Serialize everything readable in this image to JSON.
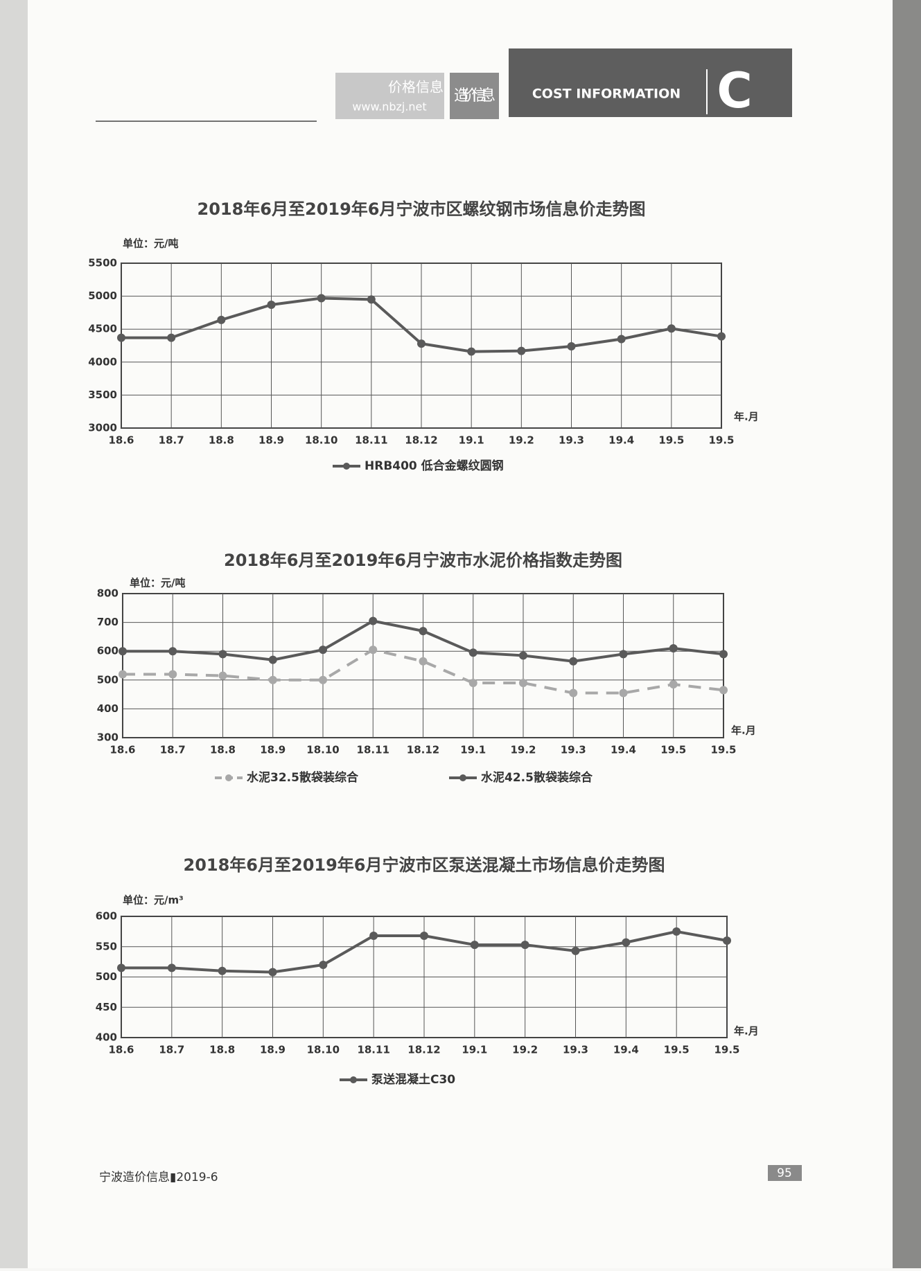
{
  "header": {
    "site_name": "价格信息",
    "site_url": "www.nbzj.net",
    "badge": "造价信息",
    "section": "COST INFORMATION",
    "letter": "C"
  },
  "footer": {
    "publication": "宁波造价信息▮2019-6",
    "page_number": "95"
  },
  "chart_data": [
    {
      "type": "line",
      "title": "2018年6月至2019年6月宁波市区螺纹钢市场信息价走势图",
      "unit_label": "单位：元/吨",
      "x_label": "年.月",
      "categories": [
        "18.6",
        "18.7",
        "18.8",
        "18.9",
        "18.10",
        "18.11",
        "18.12",
        "19.1",
        "19.2",
        "19.3",
        "19.4",
        "19.5",
        "19.5"
      ],
      "series": [
        {
          "name": "HRB400 低合金螺纹圆钢",
          "color": "#5a5a5a",
          "style": "solid",
          "values": [
            4370,
            4370,
            4640,
            4870,
            4970,
            4950,
            4280,
            4160,
            4170,
            4240,
            4350,
            4510,
            4390
          ]
        }
      ],
      "ylim": [
        3000,
        5500
      ],
      "yticks": [
        3000,
        3500,
        4000,
        4500,
        5000,
        5500
      ],
      "grid": true
    },
    {
      "type": "line",
      "title": "2018年6月至2019年6月宁波市水泥价格指数走势图",
      "unit_label": "单位：元/吨",
      "x_label": "年.月",
      "categories": [
        "18.6",
        "18.7",
        "18.8",
        "18.9",
        "18.10",
        "18.11",
        "18.12",
        "19.1",
        "19.2",
        "19.3",
        "19.4",
        "19.5",
        "19.5"
      ],
      "series": [
        {
          "name": "水泥32.5散袋装综合",
          "color": "#a8a8a8",
          "style": "dashed",
          "values": [
            520,
            520,
            515,
            500,
            500,
            605,
            565,
            490,
            490,
            455,
            455,
            485,
            465
          ]
        },
        {
          "name": "水泥42.5散袋装综合",
          "color": "#5a5a5a",
          "style": "solid",
          "values": [
            600,
            600,
            590,
            570,
            605,
            705,
            670,
            595,
            585,
            565,
            590,
            610,
            590
          ]
        }
      ],
      "ylim": [
        300,
        800
      ],
      "yticks": [
        300,
        400,
        500,
        600,
        700,
        800
      ],
      "grid": true
    },
    {
      "type": "line",
      "title": "2018年6月至2019年6月宁波市区泵送混凝土市场信息价走势图",
      "unit_label": "单位：元/m³",
      "x_label": "年.月",
      "categories": [
        "18.6",
        "18.7",
        "18.8",
        "18.9",
        "18.10",
        "18.11",
        "18.12",
        "19.1",
        "19.2",
        "19.3",
        "19.4",
        "19.5",
        "19.5"
      ],
      "series": [
        {
          "name": "泵送混凝土C30",
          "color": "#5a5a5a",
          "style": "solid",
          "values": [
            515,
            515,
            510,
            508,
            520,
            568,
            568,
            553,
            553,
            543,
            557,
            575,
            560
          ]
        }
      ],
      "ylim": [
        400,
        600
      ],
      "yticks": [
        400,
        450,
        500,
        550,
        600
      ],
      "grid": true
    }
  ]
}
